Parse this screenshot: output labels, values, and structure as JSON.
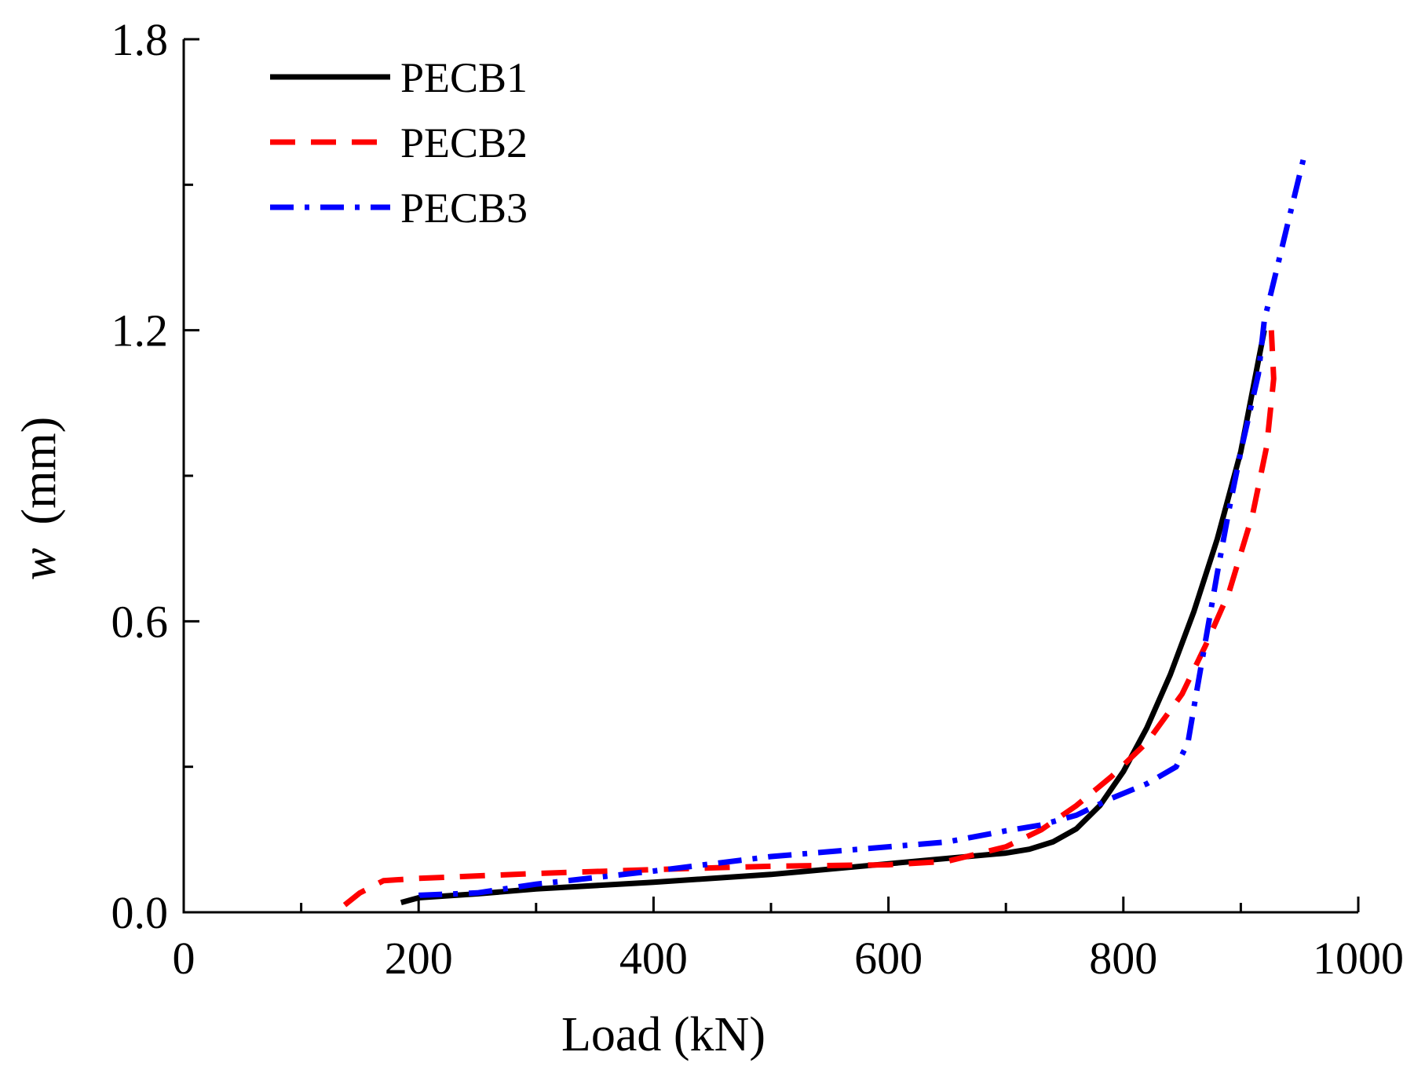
{
  "chart_data": {
    "type": "line",
    "title": "",
    "xlabel": "Load (kN)",
    "ylabel_symbol": "w",
    "ylabel_unit": "(mm)",
    "xlim": [
      0,
      1000
    ],
    "ylim": [
      0,
      1.8
    ],
    "xticks": [
      0,
      200,
      400,
      600,
      800,
      1000
    ],
    "xtick_labels": [
      "0",
      "200",
      "400",
      "600",
      "800",
      "1000"
    ],
    "yticks": [
      0.0,
      0.6,
      1.2,
      1.8
    ],
    "ytick_labels": [
      "0.0",
      "0.6",
      "1.2",
      "1.8"
    ],
    "legend_position": "top-left",
    "grid": false,
    "series": [
      {
        "name": "PECB1",
        "color": "#000000",
        "style": "solid",
        "points": [
          [
            185,
            0.02
          ],
          [
            200,
            0.03
          ],
          [
            250,
            0.038
          ],
          [
            300,
            0.048
          ],
          [
            400,
            0.062
          ],
          [
            500,
            0.078
          ],
          [
            600,
            0.1
          ],
          [
            700,
            0.122
          ],
          [
            720,
            0.13
          ],
          [
            740,
            0.145
          ],
          [
            760,
            0.172
          ],
          [
            780,
            0.22
          ],
          [
            800,
            0.29
          ],
          [
            820,
            0.38
          ],
          [
            840,
            0.49
          ],
          [
            860,
            0.62
          ],
          [
            880,
            0.77
          ],
          [
            900,
            0.95
          ],
          [
            920,
            1.2
          ]
        ]
      },
      {
        "name": "PECB2",
        "color": "#ff0000",
        "style": "dashed",
        "points": [
          [
            137,
            0.015
          ],
          [
            150,
            0.04
          ],
          [
            170,
            0.065
          ],
          [
            200,
            0.07
          ],
          [
            300,
            0.08
          ],
          [
            400,
            0.088
          ],
          [
            500,
            0.095
          ],
          [
            600,
            0.098
          ],
          [
            650,
            0.105
          ],
          [
            700,
            0.135
          ],
          [
            730,
            0.17
          ],
          [
            760,
            0.22
          ],
          [
            790,
            0.28
          ],
          [
            820,
            0.35
          ],
          [
            850,
            0.45
          ],
          [
            870,
            0.55
          ],
          [
            890,
            0.66
          ],
          [
            910,
            0.82
          ],
          [
            922,
            0.96
          ],
          [
            928,
            1.1
          ],
          [
            926,
            1.2
          ]
        ]
      },
      {
        "name": "PECB3",
        "color": "#0000ff",
        "style": "dashdot",
        "points": [
          [
            200,
            0.035
          ],
          [
            250,
            0.04
          ],
          [
            300,
            0.058
          ],
          [
            400,
            0.085
          ],
          [
            500,
            0.115
          ],
          [
            550,
            0.125
          ],
          [
            600,
            0.135
          ],
          [
            650,
            0.145
          ],
          [
            700,
            0.168
          ],
          [
            730,
            0.18
          ],
          [
            760,
            0.2
          ],
          [
            790,
            0.235
          ],
          [
            820,
            0.265
          ],
          [
            845,
            0.3
          ],
          [
            855,
            0.35
          ],
          [
            862,
            0.45
          ],
          [
            870,
            0.56
          ],
          [
            880,
            0.7
          ],
          [
            890,
            0.83
          ],
          [
            900,
            0.95
          ],
          [
            915,
            1.11
          ],
          [
            920,
            1.22
          ],
          [
            930,
            1.32
          ],
          [
            940,
            1.42
          ],
          [
            955,
            1.57
          ]
        ]
      }
    ]
  }
}
